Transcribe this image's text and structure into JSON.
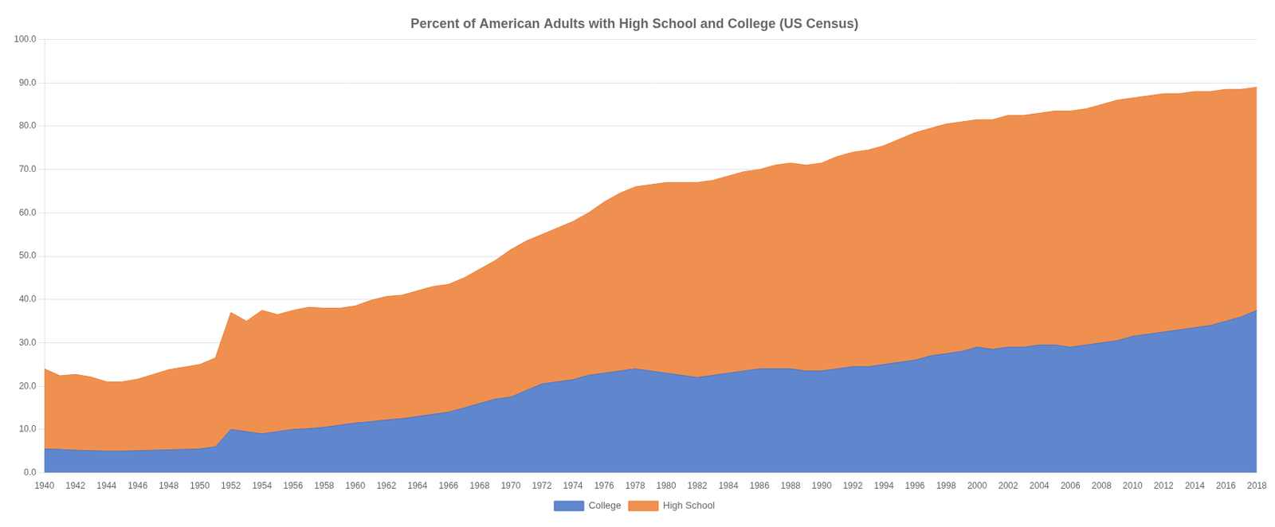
{
  "chart_data": {
    "type": "area",
    "title": "Percent of American Adults with High School and College (US Census)",
    "stacked": true,
    "x": [
      1940,
      1941,
      1942,
      1943,
      1944,
      1945,
      1946,
      1947,
      1948,
      1949,
      1950,
      1951,
      1952,
      1953,
      1954,
      1955,
      1956,
      1957,
      1958,
      1959,
      1960,
      1961,
      1962,
      1963,
      1964,
      1965,
      1966,
      1967,
      1968,
      1969,
      1970,
      1971,
      1972,
      1973,
      1974,
      1975,
      1976,
      1977,
      1978,
      1979,
      1980,
      1981,
      1982,
      1983,
      1984,
      1985,
      1986,
      1987,
      1988,
      1989,
      1990,
      1991,
      1992,
      1993,
      1994,
      1995,
      1996,
      1997,
      1998,
      1999,
      2000,
      2001,
      2002,
      2003,
      2004,
      2005,
      2006,
      2007,
      2008,
      2009,
      2010,
      2011,
      2012,
      2013,
      2014,
      2015,
      2016,
      2017,
      2018
    ],
    "series": [
      {
        "name": "College",
        "color": "#4472C4",
        "values": [
          5.5,
          5.4,
          5.2,
          5.1,
          5.0,
          5.0,
          5.1,
          5.2,
          5.3,
          5.4,
          5.5,
          6.0,
          10.0,
          9.5,
          9.0,
          9.5,
          10.0,
          10.2,
          10.5,
          11.0,
          11.5,
          11.8,
          12.2,
          12.5,
          13.0,
          13.5,
          14.0,
          15.0,
          16.0,
          17.0,
          17.5,
          19.0,
          20.5,
          21.0,
          21.5,
          22.5,
          23.0,
          23.5,
          24.0,
          23.5,
          23.0,
          22.5,
          22.0,
          22.5,
          23.0,
          23.5,
          24.0,
          24.0,
          24.0,
          23.5,
          23.5,
          24.0,
          24.5,
          24.5,
          25.0,
          25.5,
          26.0,
          27.0,
          27.5,
          28.0,
          29.0,
          28.5,
          29.0,
          29.0,
          29.5,
          29.5,
          29.0,
          29.5,
          30.0,
          30.5,
          31.5,
          32.0,
          32.5,
          33.0,
          33.5,
          34.0,
          35.0,
          36.0,
          37.5
        ]
      },
      {
        "name": "High School",
        "color": "#ED7D31",
        "values": [
          18.5,
          17.0,
          17.5,
          17.0,
          16.0,
          16.0,
          16.5,
          17.5,
          18.5,
          19.0,
          19.5,
          20.5,
          27.0,
          25.5,
          28.5,
          27.0,
          27.5,
          28.0,
          27.5,
          27.0,
          27.0,
          28.0,
          28.5,
          28.5,
          29.0,
          29.5,
          29.5,
          30.0,
          31.0,
          32.0,
          34.0,
          34.5,
          34.5,
          35.5,
          36.5,
          37.5,
          39.5,
          41.0,
          42.0,
          43.0,
          44.0,
          44.5,
          45.0,
          45.0,
          45.5,
          46.0,
          46.0,
          47.0,
          47.5,
          47.5,
          48.0,
          49.0,
          49.5,
          50.0,
          50.5,
          51.5,
          52.5,
          52.5,
          53.0,
          53.0,
          52.5,
          53.0,
          53.5,
          53.5,
          53.5,
          54.0,
          54.5,
          54.5,
          55.0,
          55.5,
          55.0,
          55.0,
          55.0,
          54.5,
          54.5,
          54.0,
          53.5,
          52.5,
          51.5
        ]
      }
    ],
    "xlim": [
      1940,
      2018
    ],
    "xticks": [
      1940,
      1942,
      1944,
      1946,
      1948,
      1950,
      1952,
      1954,
      1956,
      1958,
      1960,
      1962,
      1964,
      1966,
      1968,
      1970,
      1972,
      1974,
      1976,
      1978,
      1980,
      1982,
      1984,
      1986,
      1988,
      1990,
      1992,
      1994,
      1996,
      1998,
      2000,
      2002,
      2004,
      2006,
      2008,
      2010,
      2012,
      2014,
      2016,
      2018
    ],
    "ylim": [
      0,
      100
    ],
    "yticks": [
      {
        "value": 0,
        "label": "0.0"
      },
      {
        "value": 10,
        "label": "10.0"
      },
      {
        "value": 20,
        "label": "20.0"
      },
      {
        "value": 30,
        "label": "30.0"
      },
      {
        "value": 40,
        "label": "40.0"
      },
      {
        "value": 50,
        "label": "50.0"
      },
      {
        "value": 60,
        "label": "60.0"
      },
      {
        "value": 70,
        "label": "70.0"
      },
      {
        "value": 80,
        "label": "80.0"
      },
      {
        "value": 90,
        "label": "90.0"
      },
      {
        "value": 100,
        "label": "100.0"
      }
    ],
    "grid": "y",
    "legend": "bottom"
  }
}
